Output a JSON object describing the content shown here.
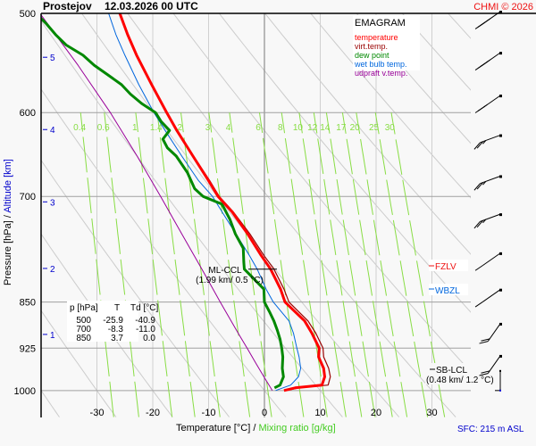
{
  "header": {
    "station": "Prostejov",
    "datetime": "12.03.2026 00 UTC",
    "copyright": "CHMI © 2026"
  },
  "colors": {
    "temperature": "#ff0000",
    "virt_temp": "#990000",
    "dew_point": "#008800",
    "wet_bulb": "#0066dd",
    "updraft": "#990099",
    "mixing_ratio": "#88dd44",
    "altitude": "#0000cc",
    "grid": "#a0a0a0",
    "dry_adiabat": "#cccccc"
  },
  "chart_data": {
    "type": "line",
    "title": "EMAGRAM",
    "xlabel": "Temperature [°C]",
    "xlabel_secondary": "Mixing ratio [g/kg]",
    "ylabel": "Pressure [hPa]",
    "ylabel_secondary": "Altitude [km]",
    "xlim": [
      -40,
      37
    ],
    "ylim": [
      1000,
      500
    ],
    "x_ticks": [
      -30,
      -20,
      -10,
      0,
      10,
      20,
      30
    ],
    "y_ticks": [
      500,
      600,
      700,
      850,
      925,
      1000
    ],
    "altitude_ticks": [
      {
        "km": 5,
        "p": 542
      },
      {
        "km": 4,
        "p": 619
      },
      {
        "km": 3,
        "p": 707
      },
      {
        "km": 2,
        "p": 799
      },
      {
        "km": 1,
        "p": 902
      }
    ],
    "mixing_ratio_labels": [
      "0.4",
      "0.6",
      "1",
      "1.4",
      "2",
      "3",
      "4",
      "6",
      "8",
      "10",
      "12",
      "14",
      "17",
      "20",
      "25",
      "30"
    ],
    "legend": {
      "title": "EMAGRAM",
      "position": "top-right",
      "entries": [
        {
          "key": "temperature",
          "label": "temperature"
        },
        {
          "key": "virt_temp",
          "label": "virt.temp."
        },
        {
          "key": "dew_point",
          "label": "dew point"
        },
        {
          "key": "wet_bulb",
          "label": "wet bulb temp."
        },
        {
          "key": "updraft",
          "label": "udpraft v.temp."
        }
      ]
    },
    "series": [
      {
        "name": "temperature",
        "p": [
          1000,
          995,
          990,
          975,
          960,
          940,
          925,
          900,
          880,
          850,
          830,
          800,
          780,
          750,
          720,
          700,
          680,
          650,
          620,
          600,
          570,
          540,
          520,
          500
        ],
        "t": [
          3.5,
          5.5,
          10.3,
          10.8,
          10.6,
          9.7,
          9.8,
          8.5,
          7.2,
          3.7,
          2.9,
          1.1,
          -0.6,
          -3.0,
          -5.8,
          -8.3,
          -10.0,
          -12.8,
          -15.7,
          -17.5,
          -20.2,
          -22.9,
          -24.5,
          -25.9
        ]
      },
      {
        "name": "virt_temp",
        "p": [
          1000,
          995,
          990,
          975,
          960,
          940,
          925,
          900,
          880,
          850,
          830,
          800,
          780,
          750,
          720,
          700,
          680,
          650,
          620,
          600,
          570,
          540,
          520,
          500
        ],
        "t": [
          3.9,
          6.2,
          11.4,
          11.8,
          11.5,
          10.6,
          10.5,
          9.2,
          7.8,
          4.4,
          3.5,
          1.7,
          -0.1,
          -2.6,
          -5.6,
          -8.1,
          -9.8,
          -12.7,
          -15.6,
          -17.4,
          -20.1,
          -22.8,
          -24.4,
          -25.8
        ]
      },
      {
        "name": "wet_bulb",
        "p": [
          1000,
          990,
          975,
          960,
          940,
          925,
          900,
          880,
          850,
          830,
          800,
          780,
          750,
          720,
          700,
          680,
          650,
          620,
          600,
          570,
          540,
          520,
          500
        ],
        "t": [
          2.0,
          4.7,
          6.1,
          6.5,
          6.2,
          5.8,
          5.2,
          4.4,
          1.6,
          0.3,
          -1.3,
          -2.7,
          -5.1,
          -7.6,
          -9.3,
          -11.8,
          -14.8,
          -17.8,
          -19.8,
          -22.5,
          -25.0,
          -26.6,
          -27.9
        ]
      },
      {
        "name": "dew_point",
        "p": [
          995,
          990,
          975,
          960,
          940,
          925,
          910,
          895,
          880,
          865,
          850,
          830,
          810,
          800,
          790,
          770,
          750,
          730,
          710,
          700,
          690,
          670,
          650,
          640,
          630,
          620,
          610,
          600,
          590,
          580,
          570,
          560,
          550,
          540,
          530,
          520,
          510,
          500
        ],
        "t": [
          1.8,
          2.8,
          3.4,
          3.2,
          3.3,
          3.1,
          2.8,
          2.3,
          1.7,
          0.9,
          0.0,
          -0.1,
          -2.4,
          -3.6,
          -3.7,
          -3.8,
          -5.2,
          -6.2,
          -7.6,
          -11.0,
          -12.5,
          -13.8,
          -15.8,
          -17.4,
          -18.2,
          -17.0,
          -18.5,
          -19.5,
          -22.0,
          -24.0,
          -25.6,
          -28.0,
          -30.5,
          -32.5,
          -35.5,
          -37.4,
          -39.0,
          -40.9
        ]
      },
      {
        "name": "updraft",
        "p": [
          1000,
          975,
          950,
          925,
          900,
          850,
          800,
          750,
          700,
          650,
          600,
          550,
          500
        ],
        "t": [
          1.4,
          -0.1,
          -1.6,
          -3.1,
          -4.7,
          -7.9,
          -11.2,
          -14.8,
          -18.6,
          -22.8,
          -27.6,
          -33.4,
          -40.2
        ]
      }
    ],
    "annotations": [
      {
        "key": "ml_ccl",
        "label": "ML-CCL",
        "detail": "(1.99 km/ 0.5 °C)",
        "p": 800,
        "t": 0.5
      },
      {
        "key": "fzlv",
        "label": "FZLV",
        "p": 795
      },
      {
        "key": "wbzl",
        "label": "WBZL",
        "p": 830
      },
      {
        "key": "sb_lcl",
        "label": "SB-LCL",
        "detail": "(0.48 km/ 1.2 °C)",
        "p": 950
      }
    ],
    "wind_barbs": [
      {
        "p": 510,
        "dir": 235,
        "speed_kt": 25
      },
      {
        "p": 550,
        "dir": 235,
        "speed_kt": 25
      },
      {
        "p": 595,
        "dir": 235,
        "speed_kt": 15
      },
      {
        "p": 640,
        "dir": 250,
        "speed_kt": 15
      },
      {
        "p": 690,
        "dir": 250,
        "speed_kt": 15
      },
      {
        "p": 740,
        "dir": 250,
        "speed_kt": 15
      },
      {
        "p": 795,
        "dir": 235,
        "speed_kt": 10
      },
      {
        "p": 850,
        "dir": 235,
        "speed_kt": 10
      },
      {
        "p": 905,
        "dir": 215,
        "speed_kt": 20
      },
      {
        "p": 960,
        "dir": 215,
        "speed_kt": 20
      },
      {
        "p": 1000,
        "dir": 180,
        "speed_kt": 5
      }
    ],
    "table": {
      "headers": [
        "p [hPa]",
        "T",
        "Td [°C]"
      ],
      "rows": [
        [
          "500",
          "-25.9",
          "-40.9"
        ],
        [
          "700",
          "-8.3",
          "-11.0"
        ],
        [
          "850",
          "3.7",
          "0.0"
        ]
      ]
    },
    "surface": "SFC: 215 m ASL"
  }
}
